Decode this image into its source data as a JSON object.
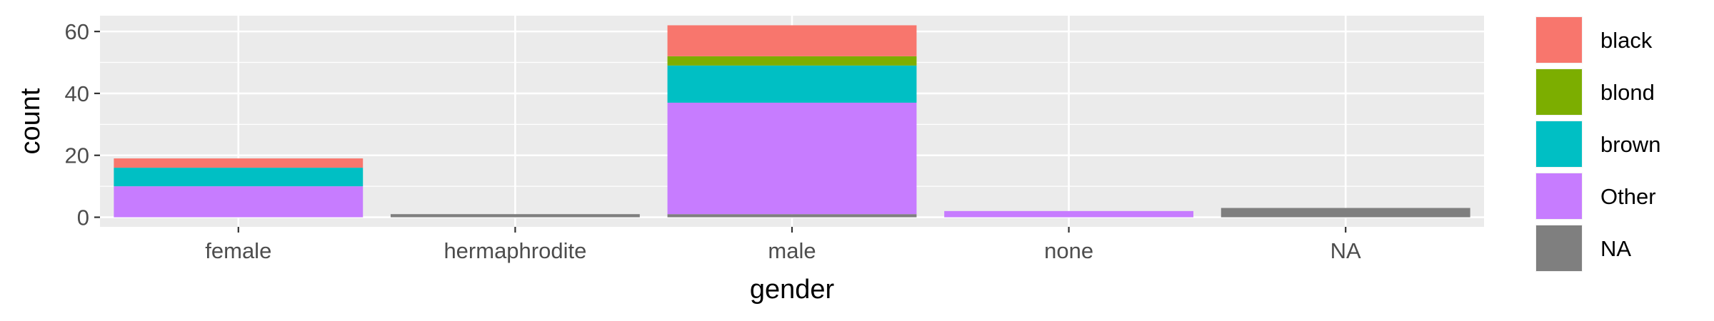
{
  "chart_data": {
    "type": "bar",
    "stacked": true,
    "categories": [
      "female",
      "hermaphrodite",
      "male",
      "none",
      "NA"
    ],
    "series": [
      {
        "name": "black",
        "color": "#F8766D",
        "values": [
          3,
          0,
          10,
          0,
          0
        ]
      },
      {
        "name": "blond",
        "color": "#7CAE00",
        "values": [
          0,
          0,
          3,
          0,
          0
        ]
      },
      {
        "name": "brown",
        "color": "#00BFC4",
        "values": [
          6,
          0,
          12,
          0,
          0
        ]
      },
      {
        "name": "Other",
        "color": "#C77CFF",
        "values": [
          10,
          0,
          36,
          2,
          0
        ]
      },
      {
        "name": "NA",
        "color": "#7F7F7F",
        "values": [
          0,
          1,
          1,
          0,
          3
        ]
      }
    ],
    "xlabel": "gender",
    "ylabel": "count",
    "ylim": [
      -3.1,
      65.1
    ],
    "yticks": [
      0,
      20,
      40,
      60
    ],
    "legend_placement": "right",
    "grid": true,
    "panel_background": "#EBEBEB",
    "grid_color": "#FFFFFF"
  }
}
